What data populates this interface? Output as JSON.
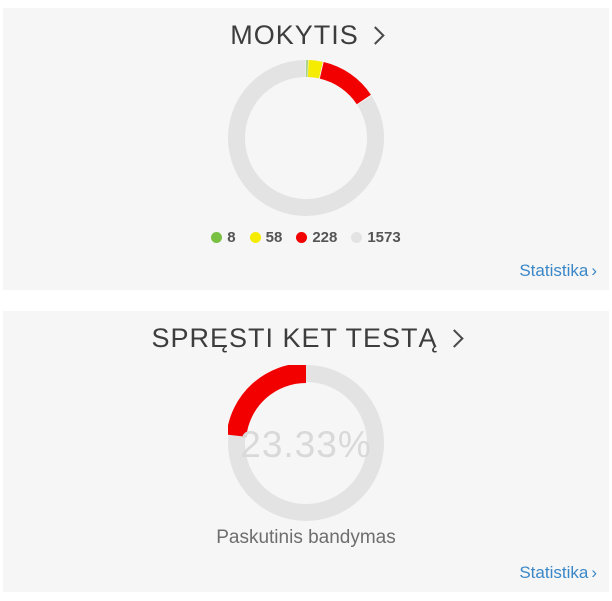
{
  "page": {
    "background": "#ffffff",
    "card_background": "#f6f6f6"
  },
  "cards": [
    {
      "id": "mokytis",
      "title": "MOKYTIS",
      "legend": [
        {
          "value": "8",
          "color": "#79c043"
        },
        {
          "value": "58",
          "color": "#f5ec00"
        },
        {
          "value": "228",
          "color": "#f20000"
        },
        {
          "value": "1573",
          "color": "#e3e3e3"
        }
      ],
      "footer_link": {
        "label": "Statistika",
        "arrow": "›",
        "color": "#3a87c8"
      }
    },
    {
      "id": "ket-testas",
      "title": "SPRĘSTI KET TESTĄ",
      "center_value": "23.33%",
      "caption": "Paskutinis bandymas",
      "footer_link": {
        "label": "Statistika",
        "arrow": "›",
        "color": "#3a87c8"
      }
    }
  ],
  "chart_data": [
    {
      "type": "pie",
      "subtype": "donut",
      "title": "MOKYTIS",
      "labels": [
        "8",
        "58",
        "228",
        "1573"
      ],
      "values": [
        8,
        58,
        228,
        1573
      ],
      "colors": [
        "#79c043",
        "#f5ec00",
        "#f20000",
        "#e3e3e3"
      ],
      "start_angle_deg": 0,
      "direction": "clockwise",
      "legend_position": "bottom",
      "segment_gap_deg": 0.7
    },
    {
      "type": "pie",
      "subtype": "donut",
      "title": "SPRĘSTI KET TESTĄ",
      "labels": [
        "23.33%",
        ""
      ],
      "values": [
        23.33,
        76.67
      ],
      "colors": [
        "#f20000",
        "#e3e3e3"
      ],
      "center_label": "23.33%",
      "start_angle_deg": 0,
      "direction": "counterclockwise"
    }
  ]
}
